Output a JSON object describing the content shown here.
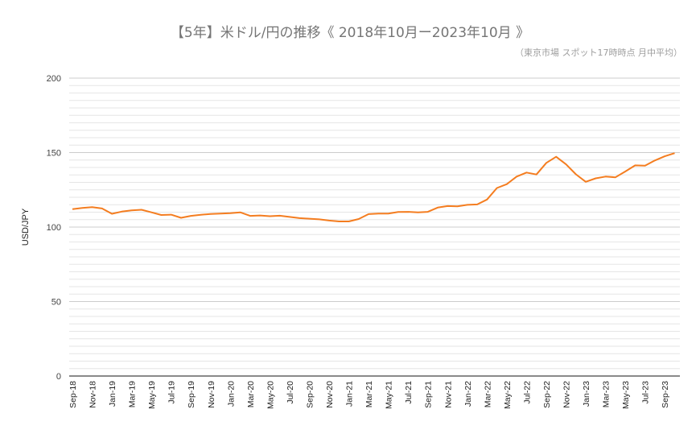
{
  "chart_data": {
    "type": "line",
    "title": "【5年】米ドル/円の推移《 2018年10月ー2023年10月 》",
    "subtitle": "（東京市場 スポット17時時点 月中平均）",
    "xlabel": "",
    "ylabel": "USD/JPY",
    "ylim": [
      0,
      200
    ],
    "yticks": [
      0,
      50,
      100,
      150,
      200
    ],
    "minor_grid_step": 5,
    "grid": true,
    "legend": "none",
    "line_color": "#f47d20",
    "x_tick_labels": [
      "Sep-18",
      "Nov-18",
      "Jan-19",
      "Mar-19",
      "May-19",
      "Jul-19",
      "Sep-19",
      "Nov-19",
      "Jan-20",
      "Mar-20",
      "May-20",
      "Jul-20",
      "Sep-20",
      "Nov-20",
      "Jan-21",
      "Mar-21",
      "May-21",
      "Jul-21",
      "Sep-21",
      "Nov-21",
      "Jan-22",
      "Mar-22",
      "May-22",
      "Jul-22",
      "Sep-22",
      "Nov-22",
      "Jan-23",
      "Mar-23",
      "May-23",
      "Jul-23",
      "Sep-23"
    ],
    "x": [
      "Sep-18",
      "Oct-18",
      "Nov-18",
      "Dec-18",
      "Jan-19",
      "Feb-19",
      "Mar-19",
      "Apr-19",
      "May-19",
      "Jun-19",
      "Jul-19",
      "Aug-19",
      "Sep-19",
      "Oct-19",
      "Nov-19",
      "Dec-19",
      "Jan-20",
      "Feb-20",
      "Mar-20",
      "Apr-20",
      "May-20",
      "Jun-20",
      "Jul-20",
      "Aug-20",
      "Sep-20",
      "Oct-20",
      "Nov-20",
      "Dec-20",
      "Jan-21",
      "Feb-21",
      "Mar-21",
      "Apr-21",
      "May-21",
      "Jun-21",
      "Jul-21",
      "Aug-21",
      "Sep-21",
      "Oct-21",
      "Nov-21",
      "Dec-21",
      "Jan-22",
      "Feb-22",
      "Mar-22",
      "Apr-22",
      "May-22",
      "Jun-22",
      "Jul-22",
      "Aug-22",
      "Sep-22",
      "Oct-22",
      "Nov-22",
      "Dec-22",
      "Jan-23",
      "Feb-23",
      "Mar-23",
      "Apr-23",
      "May-23",
      "Jun-23",
      "Jul-23",
      "Aug-23",
      "Sep-23",
      "Oct-23"
    ],
    "series": [
      {
        "name": "USD/JPY",
        "values": [
          112.0,
          112.8,
          113.4,
          112.5,
          108.9,
          110.4,
          111.2,
          111.6,
          109.9,
          108.1,
          108.3,
          106.2,
          107.5,
          108.2,
          108.8,
          109.1,
          109.3,
          109.9,
          107.5,
          107.8,
          107.3,
          107.6,
          106.8,
          106.0,
          105.6,
          105.2,
          104.4,
          103.8,
          103.8,
          105.4,
          108.7,
          109.1,
          109.1,
          110.1,
          110.2,
          109.9,
          110.2,
          113.1,
          114.1,
          113.9,
          114.9,
          115.2,
          118.5,
          126.2,
          128.8,
          133.9,
          136.6,
          135.3,
          143.1,
          147.2,
          142.1,
          135.4,
          130.4,
          132.7,
          133.9,
          133.4,
          137.3,
          141.4,
          141.2,
          144.7,
          147.5,
          149.6
        ]
      }
    ]
  }
}
